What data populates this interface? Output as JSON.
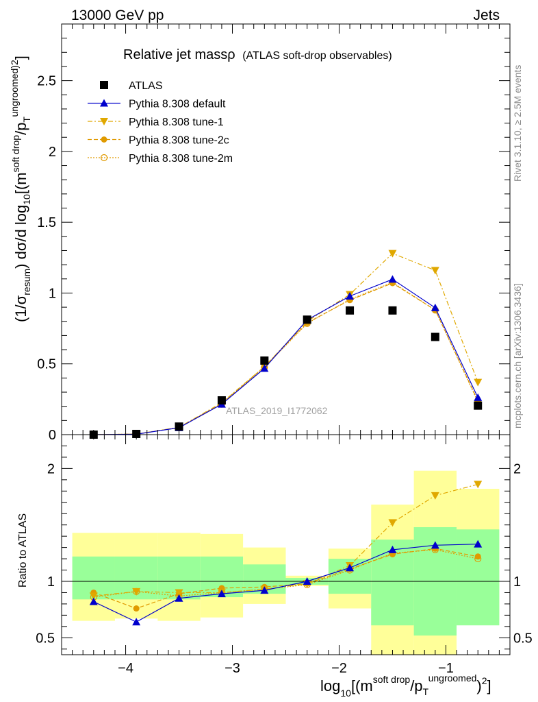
{
  "header": {
    "left": "13000 GeV pp",
    "right": "Jets"
  },
  "side_text": {
    "top": "Rivet 3.1.10, ≥ 2.5M events",
    "bottom": "mcplots.cern.ch [arXiv:1306.3436]"
  },
  "watermark": "ATLAS_2019_I1772062",
  "chart_data": {
    "type": "line",
    "title": "Relative jet massρ",
    "subtitle": "(ATLAS soft-drop observables)",
    "xlabel": "log10[(m^soft drop/pT^ungroomed)^2]",
    "ylabel_main": "(1/σresum) dσ/d log10[(m^soft drop/pT^ungroomed)^2]",
    "ylabel_ratio": "Ratio to ATLAS",
    "xlim": [
      -4.6,
      -0.4
    ],
    "ylim_main": [
      0,
      2.9
    ],
    "ylim_ratio": [
      0.35,
      2.3
    ],
    "x_ticks": [
      {
        "v": -4,
        "label": "−4"
      },
      {
        "v": -3,
        "label": "−3"
      },
      {
        "v": -2,
        "label": "−2"
      },
      {
        "v": -1,
        "label": "−1"
      }
    ],
    "y_ticks_main": [
      {
        "v": 0,
        "label": "0"
      },
      {
        "v": 0.5,
        "label": "0.5"
      },
      {
        "v": 1,
        "label": "1"
      },
      {
        "v": 1.5,
        "label": "1.5"
      },
      {
        "v": 2,
        "label": "2"
      },
      {
        "v": 2.5,
        "label": "2.5"
      }
    ],
    "y_ticks_ratio": [
      {
        "v": 0.5,
        "label": "0.5"
      },
      {
        "v": 1,
        "label": "1"
      },
      {
        "v": 2,
        "label": "2"
      }
    ],
    "x": [
      -4.3,
      -3.9,
      -3.5,
      -3.1,
      -2.7,
      -2.3,
      -1.9,
      -1.5,
      -1.1,
      -0.7
    ],
    "bin_edges": [
      -4.5,
      -4.1,
      -3.7,
      -3.3,
      -2.9,
      -2.5,
      -2.1,
      -1.7,
      -1.3,
      -0.9,
      -0.5
    ],
    "band_yellow": [
      [
        0.65,
        1.43
      ],
      [
        0.67,
        1.43
      ],
      [
        0.65,
        1.43
      ],
      [
        0.68,
        1.42
      ],
      [
        0.8,
        1.3
      ],
      [
        0.96,
        1.05
      ],
      [
        0.76,
        1.29
      ],
      [
        0.3,
        1.68
      ],
      [
        0.3,
        1.98
      ],
      [
        0.66,
        1.82
      ]
    ],
    "band_green": [
      [
        0.84,
        1.22
      ],
      [
        0.84,
        1.22
      ],
      [
        0.84,
        1.22
      ],
      [
        0.86,
        1.22
      ],
      [
        0.89,
        1.15
      ],
      [
        0.97,
        1.03
      ],
      [
        0.89,
        1.2
      ],
      [
        0.61,
        1.37
      ],
      [
        0.52,
        1.48
      ],
      [
        0.61,
        1.46
      ]
    ],
    "series": [
      {
        "name": "ATLAS",
        "color": "#000000",
        "marker": "square",
        "values": [
          0.0,
          0.005,
          0.057,
          0.242,
          0.523,
          0.812,
          0.877,
          0.877,
          0.69,
          0.205
        ]
      },
      {
        "name": "Pythia 8.308 default",
        "color": "#0000cc",
        "marker": "triangle-up",
        "line": "solid",
        "values": [
          0.0,
          0.003,
          0.049,
          0.215,
          0.468,
          0.81,
          0.978,
          1.097,
          0.896,
          0.262
        ],
        "ratio": [
          0.82,
          0.64,
          0.85,
          0.89,
          0.92,
          1.0,
          1.12,
          1.28,
          1.32,
          1.33
        ]
      },
      {
        "name": "Pythia 8.308 tune-1",
        "color": "#e0a800",
        "marker": "triangle-down",
        "line": "dashdot",
        "values": [
          0.0,
          0.004,
          0.052,
          0.225,
          0.48,
          0.8,
          0.99,
          1.28,
          1.16,
          0.37
        ],
        "ratio": [
          0.87,
          0.91,
          0.9,
          0.9,
          0.93,
          0.98,
          1.14,
          1.52,
          1.76,
          1.86
        ]
      },
      {
        "name": "Pythia 8.308 tune-2c",
        "color": "#e09a00",
        "marker": "circle",
        "line": "dashed",
        "values": [
          0.0,
          0.004,
          0.05,
          0.22,
          0.48,
          0.79,
          0.95,
          1.07,
          0.88,
          0.24
        ],
        "ratio": [
          0.9,
          0.76,
          0.89,
          0.94,
          0.95,
          0.98,
          1.11,
          1.24,
          1.29,
          1.22
        ]
      },
      {
        "name": "Pythia 8.308 tune-2m",
        "color": "#e09a00",
        "marker": "circle-open",
        "line": "dotted",
        "values": [
          0.0,
          0.004,
          0.05,
          0.215,
          0.475,
          0.785,
          0.955,
          1.075,
          0.88,
          0.232
        ],
        "ratio": [
          0.86,
          0.91,
          0.87,
          0.9,
          0.93,
          0.97,
          1.1,
          1.25,
          1.28,
          1.2
        ]
      }
    ],
    "legend_position": "top-left"
  }
}
